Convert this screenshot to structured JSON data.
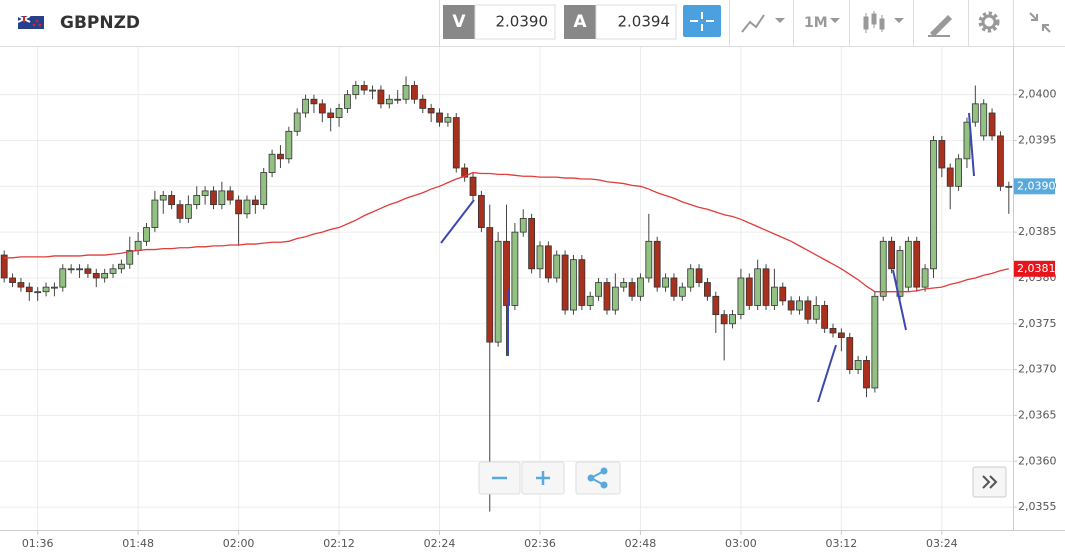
{
  "header": {
    "symbol": "GBPNZD",
    "bid_label": "V",
    "bid": "2.0390",
    "ask_label": "A",
    "ask": "2.0394",
    "timeframe": "1M"
  },
  "chart_data": {
    "type": "candlestick",
    "categories": [
      null,
      null,
      null,
      null,
      "01:36",
      null,
      null,
      null,
      null,
      null,
      null,
      null,
      null,
      null,
      null,
      null,
      "01:48",
      null,
      null,
      null,
      null,
      null,
      null,
      null,
      null,
      null,
      null,
      null,
      "02:00",
      null,
      null,
      null,
      null,
      null,
      null,
      null,
      null,
      null,
      null,
      null,
      "02:12",
      null,
      null,
      null,
      null,
      null,
      null,
      null,
      null,
      null,
      null,
      null,
      "02:24",
      null,
      null,
      null,
      null,
      null,
      null,
      null,
      null,
      null,
      null,
      null,
      "02:36",
      null,
      null,
      null,
      null,
      null,
      null,
      null,
      null,
      null,
      null,
      null,
      "02:48",
      null,
      null,
      null,
      null,
      null,
      null,
      null,
      null,
      null,
      null,
      null,
      "03:00",
      null,
      null,
      null,
      null,
      null,
      null,
      null,
      null,
      null,
      null,
      null,
      "03:12",
      null,
      null,
      null,
      null,
      null,
      null,
      null,
      null,
      null,
      null,
      null,
      "03:24",
      null,
      null,
      null,
      null,
      null,
      null,
      null,
      null
    ],
    "open": [
      2.03825,
      2.038,
      2.03795,
      2.0379,
      2.03785,
      2.03785,
      2.0379,
      2.0379,
      2.0381,
      2.0381,
      2.0381,
      2.03805,
      2.038,
      2.03805,
      2.0381,
      2.03815,
      2.0383,
      2.0384,
      2.03855,
      2.03885,
      2.0389,
      2.0388,
      2.03865,
      2.0388,
      2.0389,
      2.03895,
      2.0388,
      2.03895,
      2.03885,
      2.0387,
      2.03885,
      2.0388,
      2.03915,
      2.03935,
      2.0393,
      2.0396,
      2.0398,
      2.03995,
      2.0399,
      2.0398,
      2.03975,
      2.03985,
      2.04,
      2.0401,
      2.04005,
      2.04005,
      2.0399,
      2.03995,
      2.03995,
      2.0401,
      2.03995,
      2.03985,
      2.0398,
      2.0397,
      2.03975,
      2.0392,
      2.0391,
      2.0389,
      2.03855,
      2.0373,
      2.0384,
      2.0377,
      2.0385,
      2.03865,
      2.0381,
      2.03835,
      2.038,
      2.03825,
      2.03765,
      2.0382,
      2.0377,
      2.0378,
      2.03795,
      2.03765,
      2.0379,
      2.03795,
      2.0378,
      2.038,
      2.0384,
      2.0379,
      2.038,
      2.0378,
      2.0379,
      2.0381,
      2.03795,
      2.0378,
      2.0376,
      2.0375,
      2.0376,
      2.038,
      2.0377,
      2.0381,
      2.0377,
      2.0379,
      2.03775,
      2.03765,
      2.03775,
      2.03755,
      2.0377,
      2.03745,
      2.0374,
      2.03735,
      2.037,
      2.0371,
      2.0368,
      2.0378,
      2.0384,
      2.0378,
      2.0379,
      2.0384,
      2.0379,
      2.0381,
      2.0395,
      2.0392,
      2.039,
      2.0393,
      2.0397,
      2.03955,
      2.0398,
      2.03955,
      2.039
    ],
    "high": [
      2.0383,
      2.03805,
      2.038,
      2.03795,
      2.0379,
      2.03795,
      2.03795,
      2.03815,
      2.03815,
      2.03815,
      2.03815,
      2.0381,
      2.0381,
      2.03815,
      2.0382,
      2.03845,
      2.0385,
      2.0386,
      2.03895,
      2.03895,
      2.03895,
      2.03885,
      2.0389,
      2.039,
      2.039,
      2.039,
      2.03905,
      2.039,
      2.0389,
      2.0389,
      2.0389,
      2.0392,
      2.0394,
      2.03945,
      2.03965,
      2.03985,
      2.04,
      2.04,
      2.03995,
      2.03985,
      2.0399,
      2.04005,
      2.04015,
      2.04015,
      2.0401,
      2.0401,
      2.04,
      2.04005,
      2.0402,
      2.04015,
      2.04,
      2.0399,
      2.03985,
      2.0398,
      2.0398,
      2.03925,
      2.03915,
      2.03895,
      2.0388,
      2.0385,
      2.0388,
      2.0386,
      2.03875,
      2.0387,
      2.0384,
      2.0384,
      2.0383,
      2.0383,
      2.03825,
      2.03825,
      2.03785,
      2.038,
      2.038,
      2.03805,
      2.038,
      2.038,
      2.03805,
      2.0387,
      2.03845,
      2.03805,
      2.03805,
      2.03795,
      2.03815,
      2.03815,
      2.038,
      2.03785,
      2.03765,
      2.03765,
      2.0381,
      2.03805,
      2.0382,
      2.03815,
      2.0381,
      2.03795,
      2.0378,
      2.0378,
      2.0378,
      2.0378,
      2.03775,
      2.0375,
      2.03745,
      2.0374,
      2.03715,
      2.03715,
      2.03785,
      2.03845,
      2.03845,
      2.03835,
      2.03845,
      2.03845,
      2.03815,
      2.03955,
      2.03955,
      2.03925,
      2.03935,
      2.03975,
      2.0401,
      2.03995,
      2.03985,
      2.0396,
      2.03905
    ],
    "low": [
      2.03795,
      2.0379,
      2.03785,
      2.03775,
      2.03775,
      2.0378,
      2.0378,
      2.03785,
      2.03805,
      2.038,
      2.038,
      2.0379,
      2.03795,
      2.038,
      2.03805,
      2.0381,
      2.03825,
      2.03835,
      2.0385,
      2.0387,
      2.03875,
      2.0386,
      2.0386,
      2.03875,
      2.0388,
      2.03875,
      2.03875,
      2.0388,
      2.03835,
      2.03865,
      2.0387,
      2.03875,
      2.0391,
      2.0392,
      2.03925,
      2.03955,
      2.03975,
      2.0398,
      2.0397,
      2.0396,
      2.03965,
      2.0398,
      2.03995,
      2.04,
      2.03995,
      2.03985,
      2.03985,
      2.0399,
      2.0399,
      2.0399,
      2.0398,
      2.0397,
      2.03965,
      2.03965,
      2.03915,
      2.03905,
      2.03885,
      2.0385,
      2.03545,
      2.03725,
      2.03715,
      2.03765,
      2.03845,
      2.03805,
      2.038,
      2.03795,
      2.03795,
      2.0376,
      2.0376,
      2.03765,
      2.03765,
      2.03775,
      2.0376,
      2.0376,
      2.03785,
      2.03775,
      2.03775,
      2.03795,
      2.03785,
      2.03785,
      2.03775,
      2.03775,
      2.03785,
      2.0379,
      2.03775,
      2.0374,
      2.0371,
      2.03745,
      2.03755,
      2.03765,
      2.03765,
      2.03765,
      2.03765,
      2.0377,
      2.0376,
      2.0376,
      2.0375,
      2.0375,
      2.0374,
      2.03735,
      2.0372,
      2.03695,
      2.03695,
      2.0367,
      2.03675,
      2.03775,
      2.03805,
      2.0377,
      2.03785,
      2.03785,
      2.03785,
      2.038,
      2.0391,
      2.03875,
      2.03895,
      2.0392,
      2.03965,
      2.0395,
      2.0395,
      2.03895,
      2.0387
    ],
    "close": [
      2.038,
      2.03795,
      2.0379,
      2.03785,
      2.03785,
      2.0379,
      2.0379,
      2.0381,
      2.0381,
      2.0381,
      2.03805,
      2.038,
      2.03805,
      2.0381,
      2.03815,
      2.0383,
      2.0384,
      2.03855,
      2.03885,
      2.0389,
      2.0388,
      2.03865,
      2.0388,
      2.0389,
      2.03895,
      2.0388,
      2.03895,
      2.03885,
      2.0387,
      2.03885,
      2.0388,
      2.03915,
      2.03935,
      2.0393,
      2.0396,
      2.0398,
      2.03995,
      2.0399,
      2.0398,
      2.03975,
      2.03985,
      2.04,
      2.0401,
      2.04005,
      2.04005,
      2.0399,
      2.03995,
      2.03995,
      2.0401,
      2.03995,
      2.03985,
      2.0398,
      2.0397,
      2.03975,
      2.0392,
      2.0391,
      2.0389,
      2.03855,
      2.0373,
      2.0384,
      2.0377,
      2.0385,
      2.03865,
      2.0381,
      2.03835,
      2.038,
      2.03825,
      2.03765,
      2.0382,
      2.0377,
      2.0378,
      2.03795,
      2.03765,
      2.0379,
      2.03795,
      2.0378,
      2.038,
      2.0384,
      2.0379,
      2.038,
      2.0378,
      2.0379,
      2.0381,
      2.03795,
      2.0378,
      2.0376,
      2.0375,
      2.0376,
      2.038,
      2.0377,
      2.0381,
      2.0377,
      2.0379,
      2.03775,
      2.03765,
      2.03775,
      2.03755,
      2.0377,
      2.03745,
      2.0374,
      2.03735,
      2.037,
      2.0371,
      2.0368,
      2.0378,
      2.0384,
      2.0381,
      2.0383,
      2.0384,
      2.0379,
      2.0381,
      2.0395,
      2.0392,
      2.039,
      2.0393,
      2.0397,
      2.0399,
      2.0399,
      2.03955,
      2.039,
      2.039
    ],
    "moving_average": {
      "color": "#e23b3b",
      "values": [
        2.03822,
        2.03822,
        2.03823,
        2.03823,
        2.03823,
        2.03823,
        2.03824,
        2.03824,
        2.03824,
        2.03824,
        2.03825,
        2.03825,
        2.03825,
        2.03826,
        2.03827,
        2.03829,
        2.0383,
        2.03831,
        2.03831,
        2.03832,
        2.03832,
        2.03833,
        2.03833,
        2.03834,
        2.03834,
        2.03835,
        2.03835,
        2.03836,
        2.03836,
        2.03837,
        2.03837,
        2.03838,
        2.03839,
        2.03839,
        2.0384,
        2.03843,
        2.03845,
        2.03848,
        2.0385,
        2.03853,
        2.03855,
        2.03859,
        2.03863,
        2.03868,
        2.03872,
        2.03876,
        2.0388,
        2.03883,
        2.03887,
        2.0389,
        2.03893,
        2.03897,
        2.039,
        2.03904,
        2.03908,
        2.03911,
        2.03915,
        2.03914,
        2.03914,
        2.03913,
        2.03913,
        2.03912,
        2.03911,
        2.03911,
        2.0391,
        2.0391,
        2.0391,
        2.03909,
        2.03909,
        2.03908,
        2.03908,
        2.03907,
        2.03905,
        2.03904,
        2.03903,
        2.03901,
        2.039,
        2.03897,
        2.03893,
        2.0389,
        2.03887,
        2.03883,
        2.0388,
        2.03877,
        2.03875,
        2.03872,
        2.03869,
        2.03867,
        2.03864,
        2.0386,
        2.03856,
        2.03852,
        2.03848,
        2.03844,
        2.0384,
        2.03835,
        2.0383,
        2.03825,
        2.0382,
        2.03815,
        2.0381,
        2.03804,
        2.03798,
        2.03791,
        2.03785,
        2.03785,
        2.03785,
        2.03785,
        2.03785,
        2.03786,
        2.03788,
        2.03789,
        2.0379,
        2.03793,
        2.03795,
        2.03798,
        2.038,
        2.03803,
        2.03805,
        2.03808,
        2.0381
      ]
    },
    "up_color": "#93c083",
    "down_color": "#a8301c",
    "ylim": [
      2.03525,
      2.04052
    ],
    "yticks": [
      {
        "value": 2.0355,
        "label": "2,0355"
      },
      {
        "value": 2.036,
        "label": "2,0360"
      },
      {
        "value": 2.0365,
        "label": "2,0365"
      },
      {
        "value": 2.037,
        "label": "2,0370"
      },
      {
        "value": 2.0375,
        "label": "2,0375"
      },
      {
        "value": 2.038,
        "label": "2,0380"
      },
      {
        "value": 2.0385,
        "label": "2,0385"
      },
      {
        "value": 2.039,
        "label": "2,0390"
      },
      {
        "value": 2.0395,
        "label": "2,0395"
      },
      {
        "value": 2.04,
        "label": "2,0400"
      }
    ],
    "price_tag": {
      "value": 2.039,
      "label": "2,0390",
      "color": "#5aa9dc"
    },
    "ma_tag": {
      "value": 2.0381,
      "label": "2,0381",
      "color": "#e8141b"
    },
    "grid": true
  }
}
